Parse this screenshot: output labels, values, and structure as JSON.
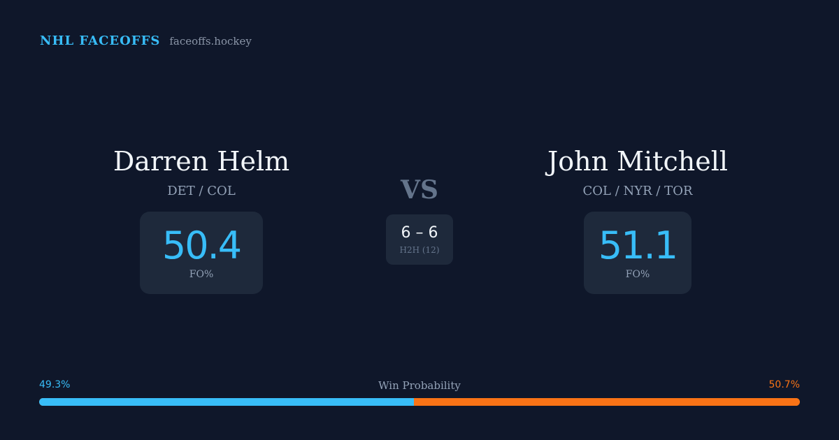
{
  "brand": {
    "name": "NHL FACEOFFS",
    "url": "faceoffs.hockey"
  },
  "player_left": {
    "name": "Darren Helm",
    "teams": "DET / COL",
    "fo_value": "50.4",
    "fo_label": "FO%"
  },
  "player_right": {
    "name": "John Mitchell",
    "teams": "COL / NYR / TOR",
    "fo_value": "51.1",
    "fo_label": "FO%"
  },
  "vs_label": "VS",
  "h2h": {
    "score": "6 – 6",
    "label": "H2H (12)"
  },
  "win_probability": {
    "title": "Win Probability",
    "left_label": "49.3%",
    "right_label": "50.7%",
    "left_value": 49.3,
    "right_value": 50.7,
    "colors": {
      "left": "#38bdf8",
      "right": "#f97316"
    }
  },
  "colors": {
    "background": "#0f172a",
    "card": "#1e293b",
    "accent": "#38bdf8",
    "accent_secondary": "#f97316"
  }
}
